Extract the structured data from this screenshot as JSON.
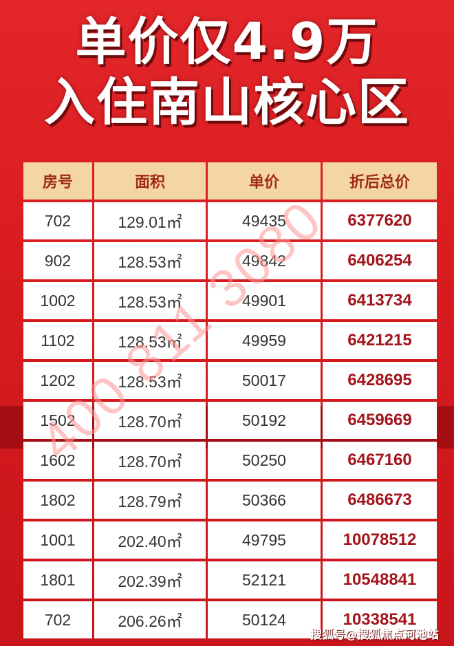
{
  "headline": {
    "line1": "单价仅4.9万",
    "line2": "入住南山核心区"
  },
  "table": {
    "headers": [
      "房号",
      "面积",
      "单价",
      "折后总价"
    ],
    "rows": [
      [
        "702",
        "129.01㎡",
        "49435",
        "6377620"
      ],
      [
        "902",
        "128.53㎡",
        "49842",
        "6406254"
      ],
      [
        "1002",
        "128.53㎡",
        "49901",
        "6413734"
      ],
      [
        "1102",
        "128.53㎡",
        "49959",
        "6421215"
      ],
      [
        "1202",
        "128.53㎡",
        "50017",
        "6428695"
      ],
      [
        "1502",
        "128.70㎡",
        "50192",
        "6459669"
      ],
      [
        "1602",
        "128.70㎡",
        "50250",
        "6467160"
      ],
      [
        "1802",
        "128.79㎡",
        "50366",
        "6486673"
      ],
      [
        "1001",
        "202.40㎡",
        "49795",
        "10078512"
      ],
      [
        "1801",
        "202.39㎡",
        "52121",
        "10548841"
      ],
      [
        "702",
        "206.26㎡",
        "50124",
        "10338541"
      ]
    ]
  },
  "watermark": "400 811 3080",
  "footer": "搜狐号@搜狐焦点河池站",
  "colors": {
    "background": "#d81c20",
    "header_bg": "#f4d5a6",
    "total_text": "#a3151c"
  }
}
